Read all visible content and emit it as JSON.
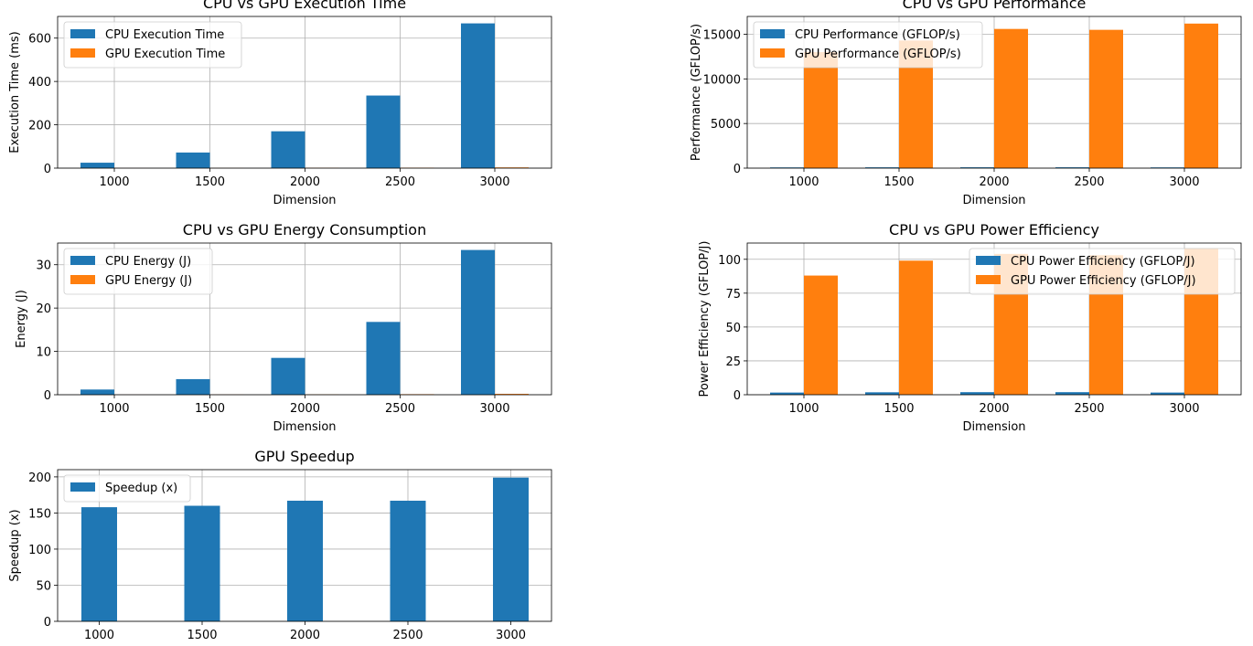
{
  "colors": {
    "cpu": "#1f77b4",
    "gpu": "#ff7f0e",
    "grid": "#b0b0b0"
  },
  "chart_data": [
    {
      "type": "bar",
      "title": "CPU vs GPU Execution Time",
      "xlabel": "Dimension",
      "ylabel": "Execution Time (ms)",
      "categories": [
        "1000",
        "1500",
        "2000",
        "2500",
        "3000"
      ],
      "series": [
        {
          "name": "CPU Execution Time",
          "values": [
            25,
            72,
            170,
            335,
            668
          ]
        },
        {
          "name": "GPU Execution Time",
          "values": [
            0.2,
            0.4,
            1.0,
            2.0,
            3.3
          ]
        }
      ],
      "ylim": [
        0,
        700
      ],
      "yticks": [
        0,
        200,
        400,
        600
      ],
      "grid": true,
      "legend": "upper left"
    },
    {
      "type": "bar",
      "title": "CPU vs GPU Performance",
      "xlabel": "Dimension",
      "ylabel": "Performance (GFLOP/s)",
      "categories": [
        "1000",
        "1500",
        "2000",
        "2500",
        "3000"
      ],
      "series": [
        {
          "name": "CPU Performance (GFLOP/s)",
          "values": [
            80,
            90,
            93,
            93,
            81
          ]
        },
        {
          "name": "GPU Performance (GFLOP/s)",
          "values": [
            13000,
            14300,
            15600,
            15500,
            16200
          ]
        }
      ],
      "ylim": [
        0,
        17000
      ],
      "yticks": [
        0,
        5000,
        10000,
        15000
      ],
      "grid": true,
      "legend": "upper left"
    },
    {
      "type": "bar",
      "title": "CPU vs GPU Energy Consumption",
      "xlabel": "Dimension",
      "ylabel": "Energy (J)",
      "categories": [
        "1000",
        "1500",
        "2000",
        "2500",
        "3000"
      ],
      "series": [
        {
          "name": "CPU Energy (J)",
          "values": [
            1.2,
            3.6,
            8.5,
            16.8,
            33.4
          ]
        },
        {
          "name": "GPU Energy (J)",
          "values": [
            0.01,
            0.03,
            0.06,
            0.12,
            0.2
          ]
        }
      ],
      "ylim": [
        0,
        35
      ],
      "yticks": [
        0,
        10,
        20,
        30
      ],
      "grid": true,
      "legend": "upper left"
    },
    {
      "type": "bar",
      "title": "CPU vs GPU Power Efficiency",
      "xlabel": "Dimension",
      "ylabel": "Power Efficiency (GFLOP/J)",
      "categories": [
        "1000",
        "1500",
        "2000",
        "2500",
        "3000"
      ],
      "series": [
        {
          "name": "CPU Power Efficiency (GFLOP/J)",
          "values": [
            1.6,
            1.8,
            1.9,
            1.9,
            1.6
          ]
        },
        {
          "name": "GPU Power Efficiency (GFLOP/J)",
          "values": [
            88,
            99,
            104,
            103,
            108
          ]
        }
      ],
      "ylim": [
        0,
        112
      ],
      "yticks": [
        0,
        25,
        50,
        75,
        100
      ],
      "grid": true,
      "legend": "upper right"
    },
    {
      "type": "bar",
      "title": "GPU Speedup",
      "xlabel": "",
      "ylabel": "Speedup (x)",
      "categories": [
        "1000",
        "1500",
        "2000",
        "2500",
        "3000"
      ],
      "series": [
        {
          "name": "Speedup (x)",
          "values": [
            158,
            160,
            167,
            167,
            199
          ]
        }
      ],
      "ylim": [
        0,
        210
      ],
      "yticks": [
        0,
        50,
        100,
        150,
        200
      ],
      "grid": true,
      "legend": "upper left"
    }
  ]
}
